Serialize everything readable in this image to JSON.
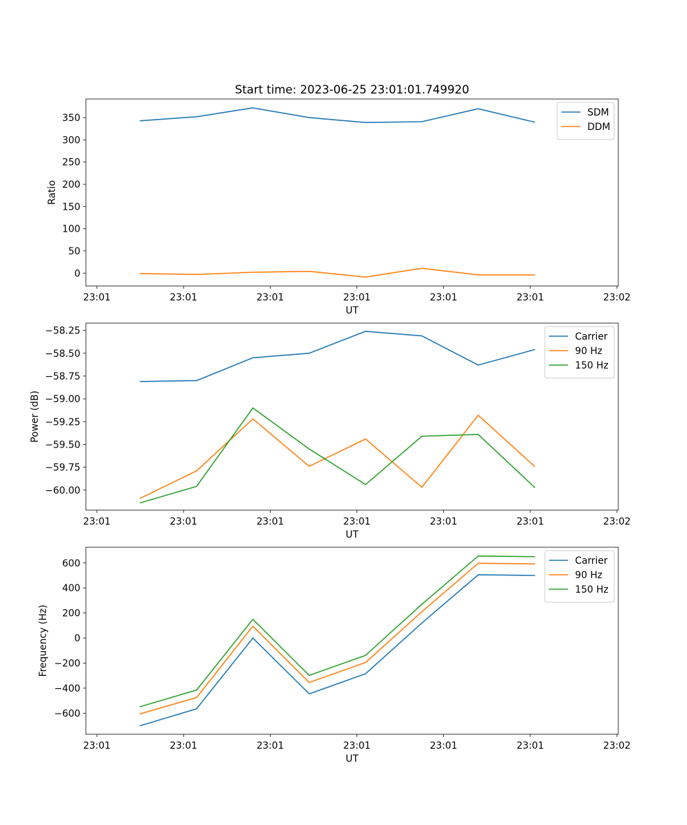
{
  "figure": {
    "title": "Start time: 2023-06-25 23:01:01.749920"
  },
  "colors": {
    "blue": "#1f77b4",
    "orange": "#ff7f0e",
    "green": "#2ca02c"
  },
  "chart_data": [
    {
      "type": "line",
      "title": "Start time: 2023-06-25 23:01:01.749920",
      "xlabel": "UT",
      "ylabel": "Ratio",
      "xlim": [
        0,
        6
      ],
      "ylim": [
        -29,
        392
      ],
      "yticks": [
        0,
        50,
        100,
        150,
        200,
        250,
        300,
        350
      ],
      "ytick_labels": [
        "0",
        "50",
        "100",
        "150",
        "200",
        "250",
        "300",
        "350"
      ],
      "xticks": [
        0,
        1,
        2,
        3,
        4,
        5,
        6
      ],
      "xtick_labels": [
        "23:01",
        "23:01",
        "23:01",
        "23:01",
        "23:01",
        "23:01",
        "23:02"
      ],
      "x": [
        0.5,
        1.15,
        1.8,
        2.45,
        3.1,
        3.75,
        4.4,
        5.05
      ],
      "series": [
        {
          "name": "SDM",
          "color": "#1f77b4",
          "values": [
            343,
            352,
            372,
            350,
            339,
            341,
            370,
            340
          ]
        },
        {
          "name": "DDM",
          "color": "#ff7f0e",
          "values": [
            -1,
            -3,
            2,
            4,
            -9,
            11,
            -4,
            -4
          ]
        }
      ],
      "legend": "top-right",
      "grid": false
    },
    {
      "type": "line",
      "title": "",
      "xlabel": "UT",
      "ylabel": "Power (dB)",
      "xlim": [
        0,
        6
      ],
      "ylim": [
        -60.22,
        -58.17
      ],
      "yticks": [
        -60.0,
        -59.75,
        -59.5,
        -59.25,
        -59.0,
        -58.75,
        -58.5,
        -58.25
      ],
      "ytick_labels": [
        "−60.00",
        "−59.75",
        "−59.50",
        "−59.25",
        "−59.00",
        "−58.75",
        "−58.50",
        "−58.25"
      ],
      "xticks": [
        0,
        1,
        2,
        3,
        4,
        5,
        6
      ],
      "xtick_labels": [
        "23:01",
        "23:01",
        "23:01",
        "23:01",
        "23:01",
        "23:01",
        "23:02"
      ],
      "x": [
        0.5,
        1.15,
        1.8,
        2.45,
        3.1,
        3.75,
        4.4,
        5.05
      ],
      "series": [
        {
          "name": "Carrier",
          "color": "#1f77b4",
          "values": [
            -58.81,
            -58.8,
            -58.55,
            -58.5,
            -58.26,
            -58.31,
            -58.63,
            -58.46
          ]
        },
        {
          "name": "90 Hz",
          "color": "#ff7f0e",
          "values": [
            -60.09,
            -59.79,
            -59.22,
            -59.74,
            -59.44,
            -59.97,
            -59.18,
            -59.74
          ]
        },
        {
          "name": "150 Hz",
          "color": "#2ca02c",
          "values": [
            -60.14,
            -59.96,
            -59.1,
            -59.55,
            -59.94,
            -59.41,
            -59.39,
            -59.97
          ]
        }
      ],
      "legend": "top-right",
      "grid": false
    },
    {
      "type": "line",
      "title": "",
      "xlabel": "UT",
      "ylabel": "Frequency (Hz)",
      "xlim": [
        0,
        6
      ],
      "ylim": [
        -768,
        725
      ],
      "yticks": [
        -600,
        -400,
        -200,
        0,
        200,
        400,
        600
      ],
      "ytick_labels": [
        "−600",
        "−400",
        "−200",
        "0",
        "200",
        "400",
        "600"
      ],
      "xticks": [
        0,
        1,
        2,
        3,
        4,
        5,
        6
      ],
      "xtick_labels": [
        "23:01",
        "23:01",
        "23:01",
        "23:01",
        "23:01",
        "23:01",
        "23:02"
      ],
      "x": [
        0.5,
        1.15,
        1.8,
        2.45,
        3.1,
        3.75,
        4.4,
        5.05
      ],
      "series": [
        {
          "name": "Carrier",
          "color": "#1f77b4",
          "values": [
            -700,
            -565,
            0,
            -445,
            -285,
            120,
            505,
            500
          ]
        },
        {
          "name": "90 Hz",
          "color": "#ff7f0e",
          "values": [
            -605,
            -475,
            95,
            -355,
            -195,
            210,
            597,
            592
          ]
        },
        {
          "name": "150 Hz",
          "color": "#2ca02c",
          "values": [
            -548,
            -415,
            150,
            -298,
            -138,
            270,
            655,
            650
          ]
        }
      ],
      "legend": "top-right",
      "grid": false
    }
  ]
}
